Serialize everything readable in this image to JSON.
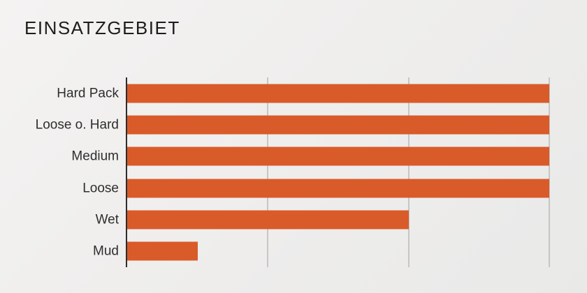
{
  "header": {
    "title": "EINSATZGEBIET"
  },
  "chart_data": {
    "type": "bar",
    "orientation": "horizontal",
    "title": "EINSATZGEBIET",
    "categories": [
      "Hard Pack",
      "Loose o. Hard",
      "Medium",
      "Loose",
      "Wet",
      "Mud"
    ],
    "values": [
      6,
      6,
      6,
      6,
      4,
      1
    ],
    "xlim": [
      0,
      6
    ],
    "gridline_values": [
      2,
      4,
      6
    ],
    "grid": true,
    "legend": false,
    "xlabel": "",
    "ylabel": "",
    "bar_color": "#d95b2a",
    "axis_color": "#2d2d2d",
    "gridline_color": "#c6c6c5",
    "label_color": "#2e2e2e",
    "title_color": "#1d1d1b"
  }
}
